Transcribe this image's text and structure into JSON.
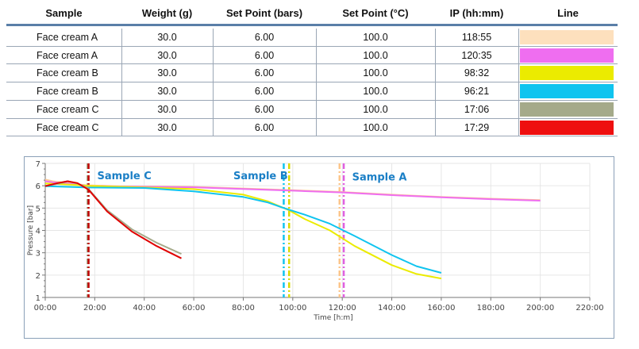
{
  "table": {
    "headers": [
      "Sample",
      "Weight (g)",
      "Set Point (bars)",
      "Set Point (°C)",
      "IP (hh:mm)",
      "Line"
    ],
    "rows": [
      {
        "sample": "Face cream  A",
        "weight": "30.0",
        "set_bars": "6.00",
        "set_c": "100.0",
        "ip": "118:55",
        "color": "#fde0bd"
      },
      {
        "sample": "Face cream  A",
        "weight": "30.0",
        "set_bars": "6.00",
        "set_c": "100.0",
        "ip": "120:35",
        "color": "#ef6ef0"
      },
      {
        "sample": "Face cream  B",
        "weight": "30.0",
        "set_bars": "6.00",
        "set_c": "100.0",
        "ip": "98:32",
        "color": "#ebeb00"
      },
      {
        "sample": "Face cream  B",
        "weight": "30.0",
        "set_bars": "6.00",
        "set_c": "100.0",
        "ip": "96:21",
        "color": "#10c4ef"
      },
      {
        "sample": "Face cream  C",
        "weight": "30.0",
        "set_bars": "6.00",
        "set_c": "100.0",
        "ip": "17:06",
        "color": "#a5aa8a"
      },
      {
        "sample": "Face cream  C",
        "weight": "30.0",
        "set_bars": "6.00",
        "set_c": "100.0",
        "ip": "17:29",
        "color": "#ee0f0f"
      }
    ]
  },
  "chart_data": {
    "type": "line",
    "xlabel": "Time [h:m]",
    "ylabel": "Pressure [bar]",
    "xlim": [
      0,
      220
    ],
    "ylim": [
      1,
      7
    ],
    "xticks": [
      0,
      20,
      40,
      60,
      80,
      100,
      120,
      140,
      160,
      180,
      200,
      220
    ],
    "xtick_labels": [
      "00:00",
      "20:00",
      "40:00",
      "60:00",
      "80:00",
      "100:00",
      "120:00",
      "140:00",
      "160:00",
      "180:00",
      "200:00",
      "220:00"
    ],
    "yticks": [
      1,
      2,
      3,
      4,
      5,
      6,
      7
    ],
    "ytick_labels": [
      "1",
      "2",
      "3",
      "4",
      "5",
      "6",
      "7"
    ],
    "annotations": [
      {
        "text": "Sample C",
        "x": 21,
        "y": 6.5,
        "color": "#1b7fc6"
      },
      {
        "text": "Sample B",
        "x": 76,
        "y": 6.5,
        "color": "#1b7fc6"
      },
      {
        "text": "Sample A",
        "x": 124,
        "y": 6.45,
        "color": "#1b7fc6"
      }
    ],
    "ip_lines": [
      {
        "x": 17.1,
        "color": "#a5aa8a"
      },
      {
        "x": 17.5,
        "color": "#c00000"
      },
      {
        "x": 96.35,
        "color": "#10c4ef"
      },
      {
        "x": 98.53,
        "color": "#dada00"
      },
      {
        "x": 118.9,
        "color": "#fcc68a"
      },
      {
        "x": 120.6,
        "color": "#e060e0"
      }
    ],
    "series": [
      {
        "name": "Face cream A (118:55)",
        "color": "#fcc896",
        "x": [
          0,
          3,
          10,
          17,
          30,
          60,
          100,
          120,
          140,
          160,
          180,
          200
        ],
        "y": [
          6.28,
          6.2,
          6.1,
          6.02,
          5.98,
          5.95,
          5.8,
          5.72,
          5.6,
          5.5,
          5.42,
          5.36
        ]
      },
      {
        "name": "Face cream A (120:35)",
        "color": "#ef6ef0",
        "x": [
          0,
          3,
          10,
          17,
          30,
          60,
          100,
          120,
          140,
          160,
          180,
          200
        ],
        "y": [
          6.2,
          6.15,
          6.08,
          6.0,
          5.96,
          5.93,
          5.78,
          5.7,
          5.58,
          5.48,
          5.4,
          5.33
        ]
      },
      {
        "name": "Face cream B (98:32)",
        "color": "#ebeb00",
        "x": [
          0,
          10,
          17,
          40,
          60,
          80,
          90,
          98.5,
          105,
          115,
          125,
          140,
          150,
          160
        ],
        "y": [
          6.1,
          6.05,
          6.0,
          5.92,
          5.85,
          5.6,
          5.3,
          4.9,
          4.5,
          4.0,
          3.3,
          2.45,
          2.05,
          1.85
        ]
      },
      {
        "name": "Face cream B (96:21)",
        "color": "#10c4ef",
        "x": [
          0,
          10,
          17,
          40,
          60,
          80,
          90,
          96.4,
          105,
          115,
          125,
          140,
          150,
          160
        ],
        "y": [
          5.98,
          5.95,
          5.92,
          5.9,
          5.75,
          5.5,
          5.25,
          5.0,
          4.7,
          4.3,
          3.75,
          2.9,
          2.4,
          2.1
        ]
      },
      {
        "name": "Face cream C (17:06)",
        "color": "#a5aa8a",
        "x": [
          0,
          5,
          9,
          13,
          17.1,
          25,
          35,
          45,
          55
        ],
        "y": [
          6.0,
          6.08,
          6.2,
          6.1,
          5.9,
          4.9,
          4.05,
          3.45,
          2.95
        ]
      },
      {
        "name": "Face cream C (17:29)",
        "color": "#e00000",
        "x": [
          0,
          5,
          9,
          13,
          17.5,
          25,
          35,
          45,
          55
        ],
        "y": [
          5.98,
          6.12,
          6.2,
          6.12,
          5.82,
          4.85,
          3.95,
          3.3,
          2.75
        ]
      }
    ]
  }
}
